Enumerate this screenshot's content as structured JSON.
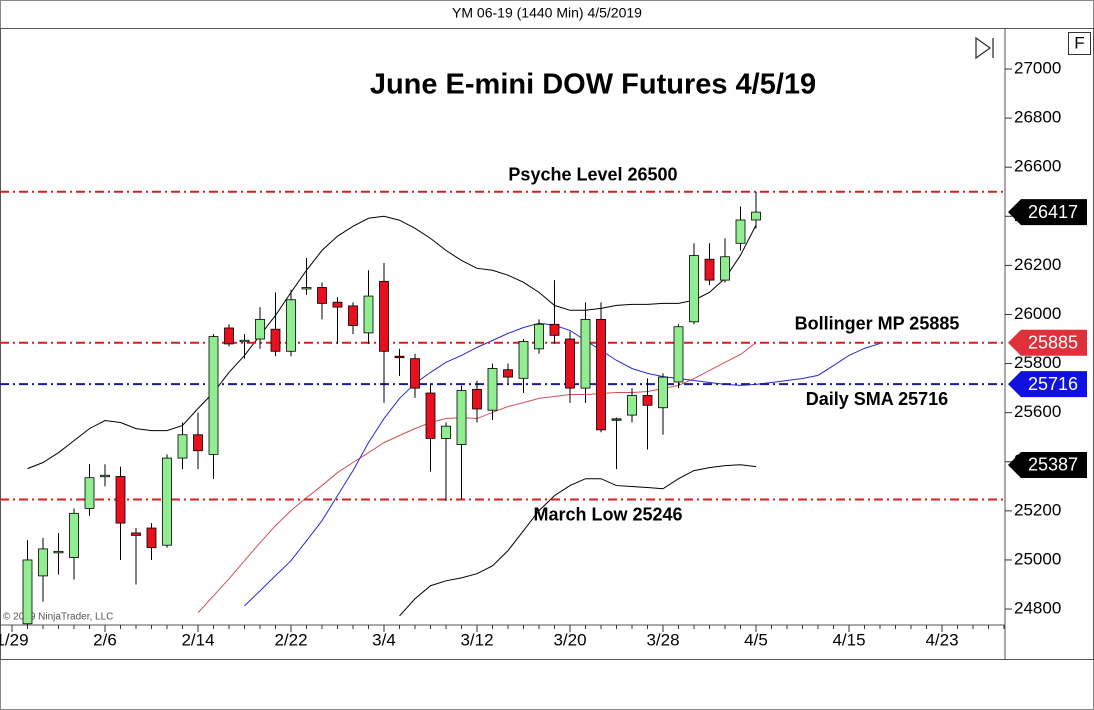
{
  "chart_data": {
    "type": "candlestick",
    "instrument": "YM 06-19 (1440 Min)  4/5/2019",
    "title": "June E-mini DOW Futures 4/5/19",
    "copyright": "© 2019 NinjaTrader, LLC",
    "panel_button": "F",
    "categories": [
      "1/29",
      null,
      null,
      null,
      null,
      null,
      "2/6",
      null,
      null,
      null,
      null,
      null,
      "2/14",
      null,
      null,
      null,
      null,
      null,
      "2/22",
      null,
      null,
      null,
      null,
      null,
      "3/4",
      null,
      null,
      null,
      null,
      null,
      "3/12",
      null,
      null,
      null,
      null,
      null,
      "3/20",
      null,
      null,
      null,
      null,
      null,
      "3/28",
      null,
      null,
      null,
      null,
      null,
      "4/5",
      null,
      null,
      null,
      null,
      null,
      "4/15",
      null,
      null,
      null,
      null,
      null,
      "4/23",
      null,
      null,
      null,
      null
    ],
    "up_color": "#90ee90",
    "down_color": "#e8101e",
    "open": [
      null,
      24740,
      24935,
      25030,
      25010,
      25210,
      25340,
      25340,
      25110,
      25130,
      25060,
      25415,
      25510,
      25430,
      25945,
      25890,
      25900,
      25940,
      25850,
      26105,
      26110,
      26050,
      26035,
      25925,
      26135,
      25830,
      25820,
      25680,
      25495,
      25470,
      25695,
      25610,
      25775,
      25740,
      25860,
      25960,
      25900,
      25700,
      25980,
      25575,
      25590,
      25670,
      25620,
      25725,
      25970,
      26225,
      26140,
      26290,
      26385,
      null,
      null,
      null,
      null,
      null,
      null,
      null,
      null,
      null,
      null,
      null,
      null,
      null,
      null,
      null,
      null
    ],
    "high": [
      null,
      25080,
      25090,
      25110,
      25210,
      25390,
      25390,
      25380,
      25130,
      25150,
      25430,
      25560,
      25600,
      25920,
      25960,
      25920,
      26030,
      26090,
      26100,
      26230,
      26130,
      26070,
      26050,
      26180,
      26210,
      25860,
      25840,
      25720,
      25560,
      25710,
      25730,
      25800,
      25800,
      25900,
      25980,
      26140,
      25930,
      26050,
      26050,
      25580,
      25700,
      25740,
      25760,
      25960,
      26290,
      26290,
      26310,
      26440,
      26500,
      null,
      null,
      null,
      null,
      null,
      null,
      null,
      null,
      null,
      null,
      null,
      null,
      null,
      null,
      null,
      null
    ],
    "low": [
      null,
      24720,
      24830,
      24940,
      24920,
      25180,
      25300,
      25000,
      24900,
      25000,
      25050,
      25370,
      25370,
      25330,
      25870,
      25820,
      25860,
      25830,
      25830,
      26080,
      25980,
      25880,
      25920,
      25880,
      25640,
      25750,
      25660,
      25360,
      25240,
      25250,
      25560,
      25570,
      25720,
      25680,
      25840,
      25880,
      25640,
      25640,
      25520,
      25370,
      25560,
      25450,
      25510,
      25700,
      25960,
      26120,
      26130,
      26260,
      26350,
      null,
      null,
      null,
      null,
      null,
      null,
      null,
      null,
      null,
      null,
      null,
      null,
      null,
      null,
      null,
      null
    ],
    "close": [
      null,
      25000,
      25045,
      25035,
      25190,
      25335,
      25345,
      25150,
      25100,
      25050,
      25415,
      25510,
      25445,
      25910,
      25880,
      25895,
      25980,
      25850,
      26060,
      26110,
      26045,
      26030,
      25955,
      26075,
      25850,
      25825,
      25700,
      25495,
      25545,
      25690,
      25615,
      25780,
      25745,
      25890,
      25960,
      25915,
      25700,
      25980,
      25530,
      25570,
      25670,
      25630,
      25745,
      25950,
      26240,
      26140,
      26235,
      26385,
      26417,
      null,
      null,
      null,
      null,
      null,
      null,
      null,
      null,
      null,
      null,
      null,
      null,
      null,
      null,
      null,
      null
    ],
    "overlays": [
      {
        "color": "#000000",
        "values": [
          null,
          25372,
          25397,
          25437,
          25486,
          25535,
          25568,
          25560,
          25535,
          25527,
          25527,
          25548,
          25617,
          25682,
          25764,
          25833,
          25915,
          25996,
          26090,
          26180,
          26261,
          26319,
          26359,
          26392,
          26400,
          26384,
          26351,
          26310,
          26261,
          26220,
          26188,
          26180,
          26160,
          26131,
          26090,
          26037,
          26017,
          26017,
          26025,
          26037,
          26041,
          26041,
          26045,
          26045,
          26058,
          26090,
          26147,
          26241,
          26364,
          null,
          null,
          null,
          null,
          null,
          null,
          null,
          null,
          null,
          null,
          null,
          null,
          null,
          null,
          null,
          null
        ]
      },
      {
        "color": "#000000",
        "values": [
          null,
          null,
          null,
          null,
          null,
          null,
          null,
          null,
          null,
          null,
          null,
          null,
          null,
          null,
          null,
          null,
          null,
          null,
          null,
          null,
          null,
          null,
          null,
          null,
          null,
          24772,
          24842,
          24895,
          24915,
          24927,
          24944,
          24976,
          25038,
          25119,
          25201,
          25262,
          25303,
          25331,
          25331,
          25303,
          25299,
          25295,
          25290,
          25331,
          25364,
          25376,
          25384,
          25388,
          25380,
          null,
          null,
          null,
          null,
          null,
          null,
          null,
          null,
          null,
          null,
          null,
          null,
          null,
          null,
          null,
          null
        ]
      },
      {
        "color": "#d0505a",
        "values": [
          null,
          null,
          null,
          null,
          null,
          null,
          null,
          null,
          null,
          null,
          null,
          null,
          24785,
          24854,
          24923,
          24997,
          25070,
          25140,
          25201,
          25254,
          25303,
          25356,
          25397,
          25437,
          25478,
          25507,
          25535,
          25560,
          25576,
          25580,
          25576,
          25601,
          25625,
          25641,
          25658,
          25666,
          25674,
          25674,
          25678,
          25682,
          25682,
          25686,
          25698,
          25711,
          25739,
          25772,
          25805,
          25837,
          25885,
          null,
          null,
          null,
          null,
          null,
          null,
          null,
          null,
          null,
          null,
          null,
          null,
          null,
          null,
          null,
          null
        ]
      },
      {
        "color": "#2a2ad0",
        "values": [
          null,
          null,
          null,
          null,
          null,
          null,
          null,
          null,
          null,
          null,
          null,
          null,
          null,
          null,
          null,
          24813,
          24874,
          24936,
          24997,
          25078,
          25160,
          25262,
          25364,
          25478,
          25576,
          25658,
          25719,
          25764,
          25805,
          25833,
          25866,
          25894,
          25923,
          25947,
          25964,
          25956,
          25935,
          25894,
          25854,
          25813,
          25780,
          25760,
          25747,
          25739,
          25731,
          25723,
          25715,
          25711,
          25715,
          25723,
          25731,
          25739,
          25752,
          25792,
          25833,
          25862,
          25882,
          null,
          null,
          null,
          null,
          null,
          null,
          null,
          null
        ]
      }
    ],
    "levels": [
      {
        "value": 26500,
        "label": "Psyche Level 26500",
        "color": "#d42020"
      },
      {
        "value": 25885,
        "label": "Bollinger MP 25885",
        "color": "#d42020"
      },
      {
        "value": 25716,
        "label": "Daily SMA 25716",
        "color": "#1a1aa0"
      },
      {
        "value": 25246,
        "label": "March Low 25246",
        "color": "#d42020"
      }
    ],
    "price_markers": [
      {
        "value": 26417,
        "color": "#000000"
      },
      {
        "value": 25885,
        "color": "#e0303a"
      },
      {
        "value": 25716,
        "color": "#1010e0"
      },
      {
        "value": 25387,
        "color": "#000000"
      }
    ],
    "ylim": [
      24735,
      27167
    ],
    "yticks": [
      24800,
      25000,
      25200,
      25400,
      25600,
      25800,
      26000,
      26200,
      26400,
      26600,
      26800,
      27000
    ]
  }
}
